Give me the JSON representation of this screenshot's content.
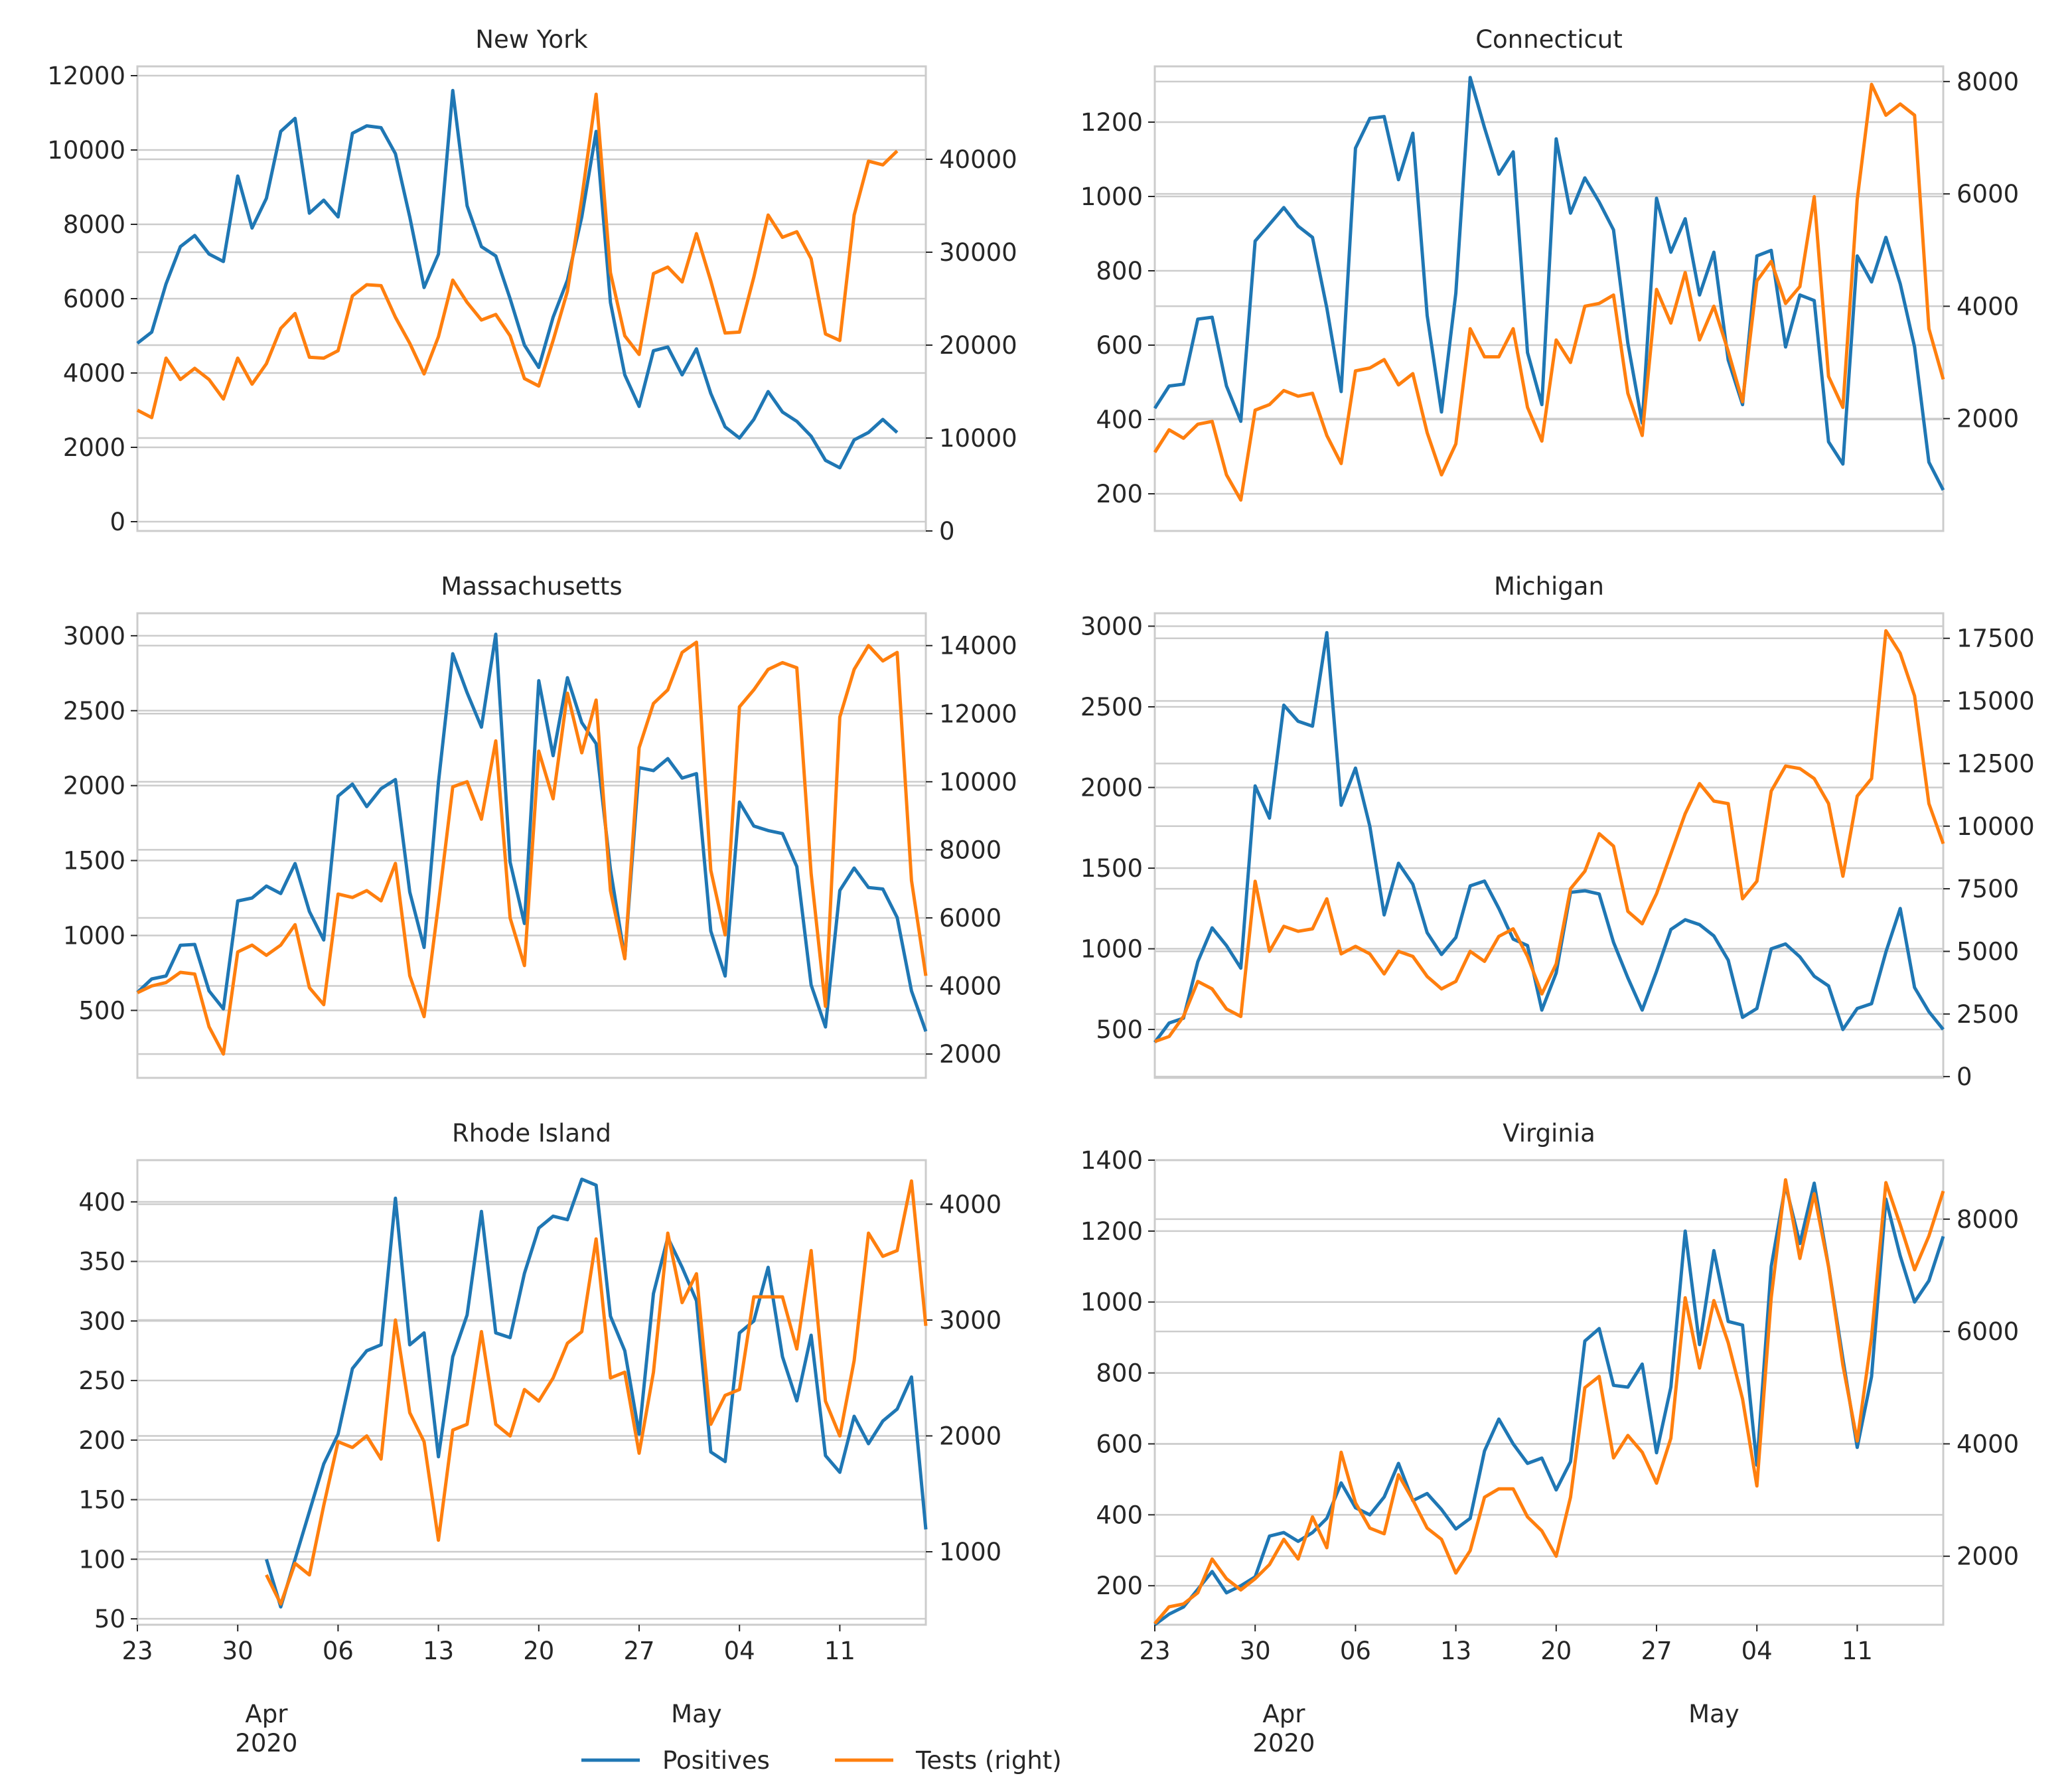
{
  "figure": {
    "colors": {
      "positives": "#1f77b4",
      "tests": "#ff7f0e",
      "grid": "#cccccc",
      "spine": "#cccccc",
      "text": "#262626"
    },
    "x_tick_labels": [
      "23",
      "30",
      "06",
      "13",
      "20",
      "27",
      "04",
      "11"
    ],
    "x_tick_days": [
      0,
      7,
      14,
      21,
      28,
      35,
      42,
      49
    ],
    "month_labels": [
      {
        "text": "Apr",
        "day": 9
      },
      {
        "text": "May",
        "day": 39
      }
    ],
    "year_label": "2020",
    "x_range_days": [
      0,
      55
    ],
    "legend": {
      "positives_label": "Positives",
      "tests_label": "Tests (right)",
      "placement": "bottom-center"
    }
  },
  "chart_data": [
    {
      "type": "line",
      "title": "New York",
      "start_date": "2020-03-23",
      "xlabel": "",
      "ylabel": "",
      "ylim": [
        -250,
        12250
      ],
      "yticks": [
        0,
        2000,
        4000,
        6000,
        8000,
        10000,
        12000
      ],
      "ylim_right": [
        0,
        50000
      ],
      "yticks_right": [
        0,
        10000,
        20000,
        30000,
        40000
      ],
      "series": [
        {
          "name": "Positives",
          "axis": "left",
          "start_day": 0,
          "values": [
            4800,
            5100,
            6400,
            7400,
            7700,
            7200,
            7000,
            9300,
            7900,
            8700,
            10500,
            10850,
            8300,
            8650,
            8200,
            10450,
            10650,
            10600,
            9900,
            8200,
            6300,
            7200,
            11600,
            8500,
            7400,
            7150,
            6000,
            4750,
            4150,
            5500,
            6500,
            8200,
            10500,
            5900,
            3950,
            3100,
            4600,
            4700,
            3950,
            4650,
            3450,
            2550,
            2250,
            2750,
            3500,
            2950,
            2700,
            2300,
            1650,
            1450,
            2200,
            2400,
            2750,
            2400
          ]
        },
        {
          "name": "Tests (right)",
          "axis": "right",
          "start_day": 0,
          "values": [
            13000,
            12200,
            18600,
            16300,
            17500,
            16300,
            14200,
            18600,
            15800,
            18000,
            21800,
            23400,
            18700,
            18600,
            19400,
            25300,
            26500,
            26400,
            23000,
            20200,
            16900,
            20900,
            27000,
            24600,
            22700,
            23300,
            21000,
            16400,
            15600,
            20500,
            25800,
            35800,
            47000,
            27800,
            21000,
            19000,
            27700,
            28400,
            26800,
            32000,
            26900,
            21300,
            21400,
            27300,
            34000,
            31600,
            32200,
            29300,
            21200,
            20500,
            34000,
            39800,
            39400,
            40900
          ]
        }
      ]
    },
    {
      "type": "line",
      "title": "Connecticut",
      "start_date": "2020-03-23",
      "xlabel": "",
      "ylabel": "",
      "ylim": [
        100,
        1350
      ],
      "yticks": [
        200,
        400,
        600,
        800,
        1000,
        1200
      ],
      "ylim_right": [
        0,
        8270
      ],
      "yticks_right": [
        2000,
        4000,
        6000,
        8000
      ],
      "series": [
        {
          "name": "Positives",
          "axis": "left",
          "start_day": 0,
          "values": [
            430,
            490,
            495,
            670,
            675,
            490,
            395,
            880,
            925,
            970,
            920,
            890,
            700,
            475,
            1130,
            1210,
            1215,
            1045,
            1170,
            680,
            420,
            740,
            1320,
            1185,
            1060,
            1120,
            580,
            440,
            1155,
            955,
            1050,
            985,
            910,
            605,
            390,
            995,
            850,
            940,
            735,
            850,
            560,
            440,
            840,
            855,
            595,
            735,
            720,
            340,
            280,
            840,
            770,
            890,
            765,
            595,
            285,
            210
          ]
        },
        {
          "name": "Tests (right)",
          "axis": "right",
          "start_day": 0,
          "values": [
            1400,
            1800,
            1650,
            1900,
            1950,
            1000,
            550,
            2150,
            2250,
            2500,
            2400,
            2450,
            1700,
            1200,
            2850,
            2900,
            3050,
            2600,
            2800,
            1750,
            1000,
            1550,
            3600,
            3100,
            3100,
            3600,
            2200,
            1600,
            3400,
            3000,
            4000,
            4050,
            4200,
            2450,
            1700,
            4300,
            3700,
            4600,
            3400,
            4000,
            3200,
            2300,
            4450,
            4800,
            4050,
            4350,
            5950,
            2750,
            2200,
            5900,
            7950,
            7400,
            7600,
            7400,
            3600,
            2700
          ]
        }
      ]
    },
    {
      "type": "line",
      "title": "Massachusetts",
      "start_date": "2020-03-23",
      "xlabel": "",
      "ylabel": "",
      "ylim": [
        50,
        3150
      ],
      "yticks": [
        500,
        1000,
        1500,
        2000,
        2500,
        3000
      ],
      "ylim_right": [
        1300,
        14950
      ],
      "yticks_right": [
        2000,
        4000,
        6000,
        8000,
        10000,
        12000,
        14000
      ],
      "series": [
        {
          "name": "Positives",
          "axis": "left",
          "start_day": 0,
          "values": [
            620,
            710,
            730,
            935,
            940,
            630,
            510,
            1230,
            1250,
            1330,
            1280,
            1480,
            1160,
            970,
            1930,
            2010,
            1860,
            1980,
            2040,
            1290,
            920,
            2020,
            2880,
            2620,
            2390,
            3010,
            1490,
            1080,
            2700,
            2200,
            2720,
            2420,
            2280,
            1440,
            850,
            2120,
            2100,
            2180,
            2050,
            2080,
            1030,
            730,
            1890,
            1730,
            1700,
            1680,
            1460,
            670,
            390,
            1300,
            1450,
            1320,
            1310,
            1120,
            630,
            360
          ]
        },
        {
          "name": "Tests (right)",
          "axis": "right",
          "start_day": 0,
          "values": [
            3800,
            4000,
            4100,
            4400,
            4350,
            2800,
            2000,
            5000,
            5200,
            4900,
            5200,
            5800,
            3950,
            3450,
            6700,
            6600,
            6800,
            6500,
            7600,
            4300,
            3100,
            6400,
            9850,
            10000,
            8900,
            11200,
            6000,
            4600,
            10900,
            9500,
            12600,
            10850,
            12400,
            6800,
            4800,
            11000,
            12300,
            12700,
            13800,
            14100,
            7400,
            5500,
            12200,
            12700,
            13300,
            13500,
            13350,
            7300,
            3400,
            11900,
            13300,
            14000,
            13550,
            13800,
            7100,
            4300
          ]
        }
      ]
    },
    {
      "type": "line",
      "title": "Michigan",
      "start_date": "2020-03-23",
      "xlabel": "",
      "ylabel": "",
      "ylim": [
        200,
        3080
      ],
      "yticks": [
        500,
        1000,
        1500,
        2000,
        2500,
        3000
      ],
      "ylim_right": [
        -50,
        18500
      ],
      "yticks_right": [
        0,
        2500,
        5000,
        7500,
        10000,
        12500,
        15000,
        17500
      ],
      "series": [
        {
          "name": "Positives",
          "axis": "left",
          "start_day": 0,
          "values": [
            420,
            540,
            570,
            920,
            1130,
            1020,
            880,
            2010,
            1810,
            2510,
            2410,
            2380,
            2960,
            1890,
            2120,
            1760,
            1210,
            1530,
            1400,
            1100,
            965,
            1070,
            1390,
            1420,
            1250,
            1060,
            1020,
            620,
            850,
            1350,
            1360,
            1340,
            1040,
            820,
            620,
            860,
            1120,
            1180,
            1150,
            1080,
            930,
            575,
            630,
            1000,
            1030,
            950,
            830,
            770,
            500,
            630,
            660,
            980,
            1250,
            760,
            610,
            500
          ]
        },
        {
          "name": "Tests (right)",
          "axis": "right",
          "start_day": 0,
          "values": [
            1400,
            1600,
            2400,
            3800,
            3500,
            2700,
            2400,
            7800,
            5000,
            6000,
            5800,
            5900,
            7100,
            4900,
            5200,
            4900,
            4100,
            5000,
            4800,
            4000,
            3500,
            3800,
            5000,
            4600,
            5600,
            5900,
            4800,
            3300,
            4500,
            7500,
            8200,
            9700,
            9200,
            6600,
            6100,
            7300,
            8900,
            10500,
            11700,
            11000,
            10900,
            7100,
            7800,
            11400,
            12400,
            12300,
            11900,
            10900,
            8000,
            11200,
            11900,
            17800,
            16900,
            15200,
            10900,
            9300
          ]
        }
      ]
    },
    {
      "type": "line",
      "title": "Rhode Island",
      "start_date": "2020-03-23",
      "xlabel": "",
      "ylabel": "",
      "ylim": [
        45,
        435
      ],
      "yticks": [
        50,
        100,
        150,
        200,
        250,
        300,
        350,
        400
      ],
      "ylim_right": [
        370,
        4380
      ],
      "yticks_right": [
        1000,
        2000,
        3000,
        4000
      ],
      "series": [
        {
          "name": "Positives",
          "axis": "left",
          "start_day": 9,
          "values": [
            100,
            60,
            100,
            140,
            180,
            205,
            260,
            275,
            280,
            403,
            280,
            290,
            186,
            270,
            305,
            392,
            290,
            286,
            340,
            378,
            388,
            385,
            419,
            414,
            304,
            275,
            205,
            323,
            370,
            345,
            317,
            190,
            182,
            290,
            300,
            345,
            270,
            233,
            288,
            187,
            173,
            220,
            197,
            216,
            226,
            253,
            125
          ]
        },
        {
          "name": "Tests (right)",
          "axis": "right",
          "start_day": 9,
          "values": [
            800,
            550,
            900,
            800,
            1400,
            1950,
            1900,
            2000,
            1800,
            3000,
            2200,
            1950,
            1100,
            2050,
            2100,
            2900,
            2100,
            2000,
            2400,
            2300,
            2500,
            2800,
            2900,
            3700,
            2500,
            2550,
            1850,
            2550,
            3750,
            3150,
            3400,
            2100,
            2350,
            2400,
            3200,
            3200,
            3200,
            2750,
            3600,
            2300,
            2000,
            2650,
            3750,
            3550,
            3600,
            4200,
            2950
          ]
        }
      ]
    },
    {
      "type": "line",
      "title": "Virginia",
      "start_date": "2020-03-23",
      "xlabel": "",
      "ylabel": "",
      "ylim": [
        90,
        1400
      ],
      "yticks": [
        200,
        400,
        600,
        800,
        1000,
        1200,
        1400
      ],
      "ylim_right": [
        780,
        9050
      ],
      "yticks_right": [
        2000,
        4000,
        6000,
        8000
      ],
      "series": [
        {
          "name": "Positives",
          "axis": "left",
          "start_day": 0,
          "values": [
            90,
            120,
            140,
            190,
            240,
            180,
            200,
            225,
            340,
            350,
            325,
            350,
            390,
            490,
            420,
            400,
            450,
            545,
            440,
            460,
            415,
            360,
            390,
            580,
            670,
            600,
            545,
            560,
            470,
            550,
            890,
            925,
            765,
            760,
            825,
            575,
            760,
            1200,
            880,
            1145,
            945,
            935,
            540,
            1100,
            1330,
            1165,
            1335,
            1100,
            840,
            590,
            790,
            1290,
            1130,
            1000,
            1060,
            1185
          ]
        },
        {
          "name": "Tests (right)",
          "axis": "right",
          "start_day": 0,
          "values": [
            800,
            1100,
            1150,
            1350,
            1950,
            1600,
            1400,
            1600,
            1850,
            2300,
            1950,
            2700,
            2150,
            3850,
            2950,
            2500,
            2400,
            3450,
            3000,
            2500,
            2300,
            1700,
            2100,
            3050,
            3200,
            3200,
            2700,
            2450,
            2000,
            3050,
            5000,
            5200,
            3750,
            4150,
            3850,
            3300,
            4100,
            6600,
            5350,
            6550,
            5800,
            4800,
            3250,
            6600,
            8700,
            7300,
            8450,
            7150,
            5400,
            4050,
            5900,
            8650,
            7900,
            7100,
            7700,
            8500
          ]
        }
      ]
    }
  ]
}
